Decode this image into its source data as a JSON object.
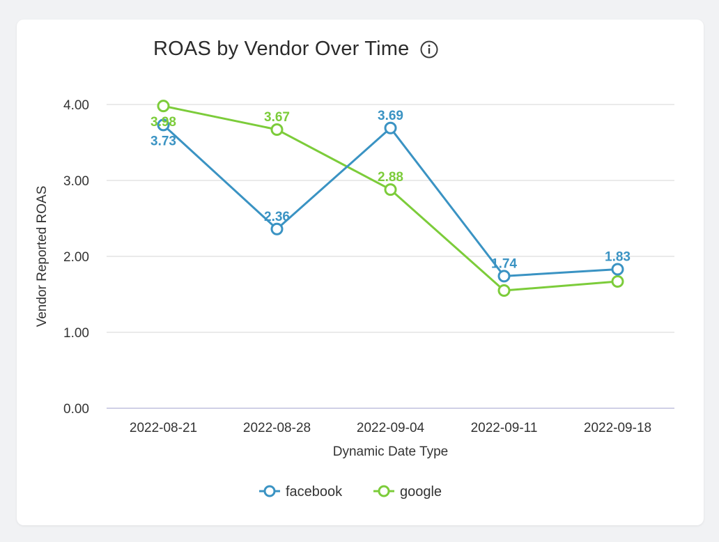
{
  "title": "ROAS by Vendor Over Time",
  "info_icon": "info-circle-icon",
  "chart_data": {
    "type": "line",
    "title": "ROAS by Vendor Over Time",
    "xlabel": "Dynamic Date Type",
    "ylabel": "Vendor Reported ROAS",
    "categories": [
      "2022-08-21",
      "2022-08-28",
      "2022-09-04",
      "2022-09-11",
      "2022-09-18"
    ],
    "ylim": [
      0,
      4
    ],
    "yticks": [
      "0.00",
      "1.00",
      "2.00",
      "3.00",
      "4.00"
    ],
    "grid": true,
    "legend_position": "bottom",
    "series": [
      {
        "name": "facebook",
        "color": "#3a93c3",
        "values": [
          3.73,
          2.36,
          3.69,
          1.74,
          1.83
        ],
        "labels": [
          "3.73",
          "2.36",
          "3.69",
          "1.74",
          "1.83"
        ]
      },
      {
        "name": "google",
        "color": "#7ccc3a",
        "values": [
          3.98,
          3.67,
          2.88,
          1.55,
          1.67
        ],
        "labels": [
          "3.98",
          "3.67",
          "2.88",
          "",
          ""
        ]
      }
    ]
  }
}
